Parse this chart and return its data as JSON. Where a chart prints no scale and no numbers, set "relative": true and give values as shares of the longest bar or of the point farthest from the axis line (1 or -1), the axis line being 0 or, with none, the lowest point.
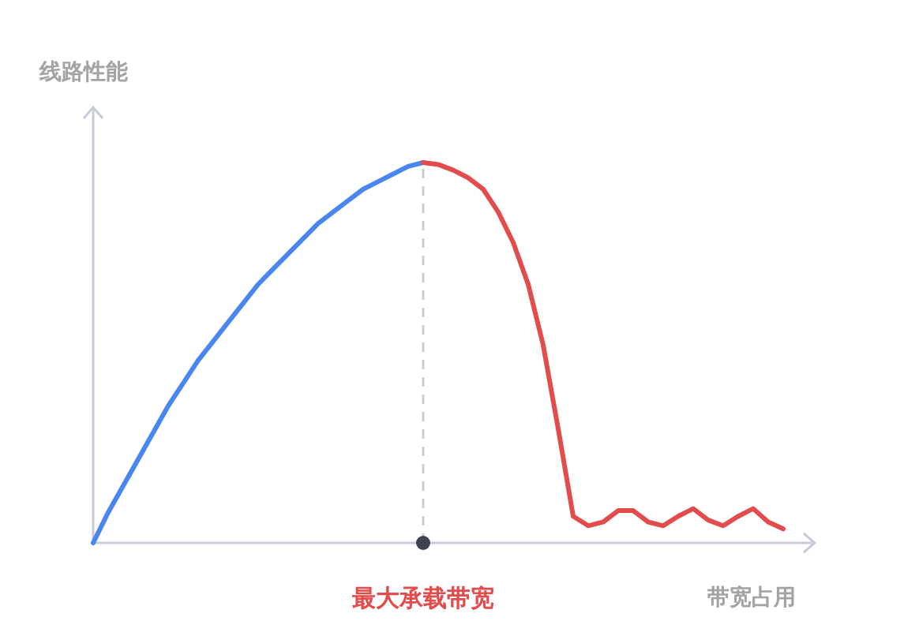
{
  "chart_data": {
    "type": "line",
    "relative": true,
    "ylabel": "线路性能",
    "xlabel": "带宽占用",
    "categories": [
      null,
      null,
      null,
      null,
      null,
      null,
      null,
      null,
      null,
      null,
      null,
      null,
      null,
      null,
      null,
      null,
      null,
      null,
      null,
      null,
      null,
      null,
      null,
      null,
      null,
      null,
      null,
      null,
      null,
      null,
      null,
      null,
      null,
      null,
      null,
      null,
      null,
      null,
      null,
      null,
      null,
      null,
      null,
      null,
      null,
      null,
      null
    ],
    "series": [
      {
        "color": "#4a86f0",
        "values": [
          0,
          0.08,
          0.15,
          0.22,
          0.29,
          0.36,
          0.42,
          0.48,
          0.53,
          0.58,
          0.63,
          0.68,
          0.72,
          0.76,
          0.8,
          0.84,
          0.87,
          0.9,
          0.93,
          0.95,
          0.97,
          0.99,
          1,
          null,
          null,
          null,
          null,
          null,
          null,
          null,
          null,
          null,
          null,
          null,
          null,
          null,
          null,
          null,
          null,
          null,
          null,
          null,
          null,
          null,
          null,
          null,
          null
        ]
      },
      {
        "color": "#e34c4c",
        "values": [
          null,
          null,
          null,
          null,
          null,
          null,
          null,
          null,
          null,
          null,
          null,
          null,
          null,
          null,
          null,
          null,
          null,
          null,
          null,
          null,
          null,
          null,
          1,
          0.995,
          0.98,
          0.96,
          0.93,
          0.87,
          0.79,
          0.68,
          0.52,
          0.3,
          0.07,
          0.045,
          0.055,
          0.085,
          0.085,
          0.055,
          0.045,
          0.07,
          0.09,
          0.06,
          0.045,
          0.07,
          0.09,
          0.055,
          0.037
        ]
      }
    ],
    "annotations": [
      "最大承载带宽"
    ]
  }
}
